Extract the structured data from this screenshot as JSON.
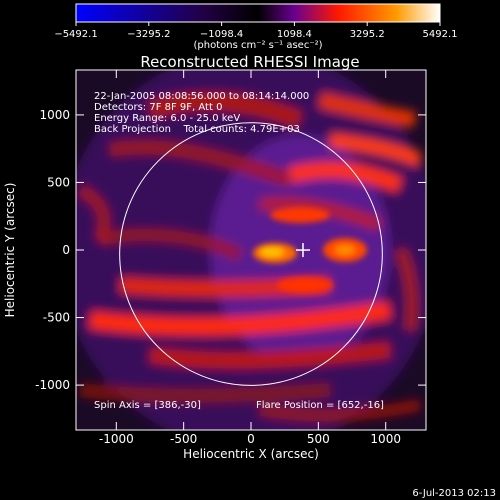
{
  "chart_data": {
    "type": "heatmap",
    "title": "Reconstructed RHESSI Image",
    "xlabel": "Heliocentric X (arcsec)",
    "ylabel": "Heliocentric Y (arcsec)",
    "xlim": [
      -1300,
      1300
    ],
    "ylim": [
      -1300,
      1000
    ],
    "x_ticks": [
      -1000,
      -500,
      0,
      500,
      1000
    ],
    "y_ticks": [
      -1000,
      -500,
      0,
      500,
      1000
    ],
    "colorbar": {
      "ticks": [
        -5492.1,
        -3295.2,
        -1098.4,
        1098.4,
        3295.2,
        5492.1
      ],
      "tick_labels": [
        "−5492.1",
        "−3295.2",
        "−1098.4",
        "1098.4",
        "3295.2",
        "5492.1"
      ],
      "unit_label": "(photons cm⁻² s⁻¹ asec⁻²)",
      "colors": [
        "#0000ff",
        "#000000",
        "#7b00a0",
        "#ff2a00",
        "#ffffff"
      ]
    },
    "info_lines": [
      "22-Jan-2005 08:08:56.000 to 08:14:14.000",
      "Detectors: 7F 8F 9F, Att 0",
      "Energy Range: 6.0 - 25.0 keV",
      "Back Projection    Total counts: 4.79E+03"
    ],
    "spin_axis": "Spin Axis = [386,-30]",
    "flare_position": "Flare Position = [652,-16]",
    "solar_limb_radius_arcsec": 975,
    "cross_position": [
      386,
      -30
    ],
    "source_positions": [
      [
        230,
        -150
      ],
      [
        652,
        -16
      ]
    ]
  },
  "footer_date": "6-Jul-2013 02:13"
}
